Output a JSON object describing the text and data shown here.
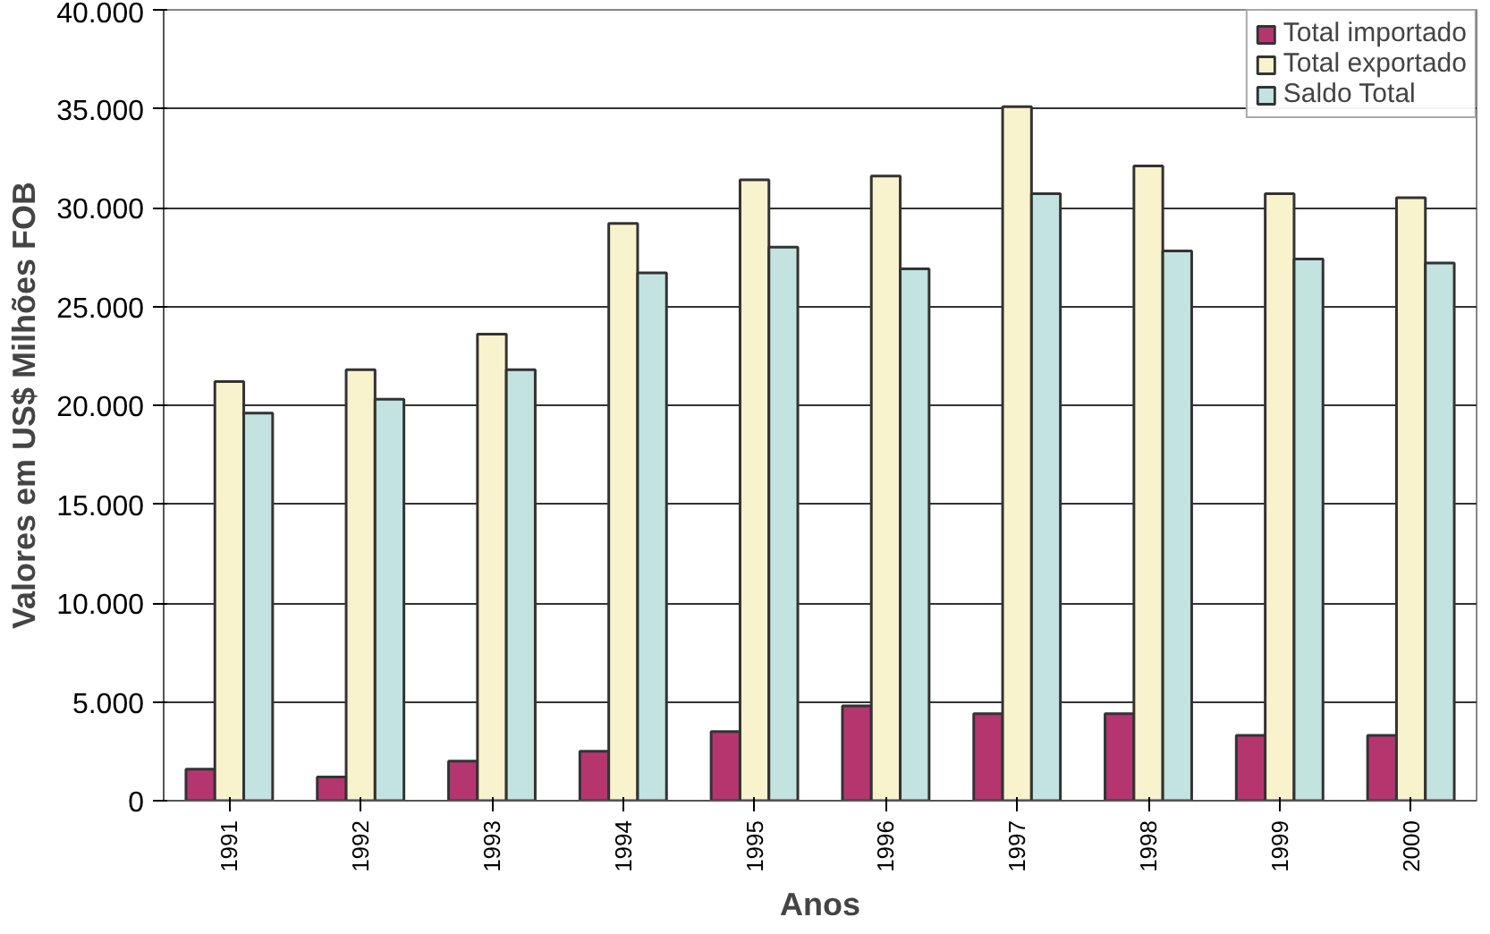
{
  "chart_data": {
    "type": "bar",
    "xlabel": "Anos",
    "ylabel": "Valores em US$ Milhões FOB",
    "categories": [
      "1991",
      "1992",
      "1993",
      "1994",
      "1995",
      "1996",
      "1997",
      "1998",
      "1999",
      "2000"
    ],
    "series": [
      {
        "name": "Total importado",
        "color": "#b5366f",
        "values": [
          1600,
          1200,
          2000,
          2500,
          3500,
          4800,
          4400,
          4400,
          3300,
          3300
        ]
      },
      {
        "name": "Total exportado",
        "color": "#f8f3cc",
        "values": [
          21200,
          21800,
          23600,
          29200,
          31400,
          31600,
          35100,
          32100,
          30700,
          30500
        ]
      },
      {
        "name": "Saldo Total",
        "color": "#c2e3e0",
        "values": [
          19600,
          20300,
          21800,
          26700,
          28000,
          26900,
          30700,
          27800,
          27400,
          27200
        ]
      }
    ],
    "ylim": [
      0,
      40000
    ],
    "yticks": [
      {
        "value": 0,
        "label": "0"
      },
      {
        "value": 5000,
        "label": "5.000"
      },
      {
        "value": 10000,
        "label": "10.000"
      },
      {
        "value": 15000,
        "label": "15.000"
      },
      {
        "value": 20000,
        "label": "20.000"
      },
      {
        "value": 25000,
        "label": "25.000"
      },
      {
        "value": 30000,
        "label": "30.000"
      },
      {
        "value": 35000,
        "label": "35.000"
      },
      {
        "value": 40000,
        "label": "40.000"
      }
    ],
    "grid": "y",
    "legend": "top right"
  }
}
